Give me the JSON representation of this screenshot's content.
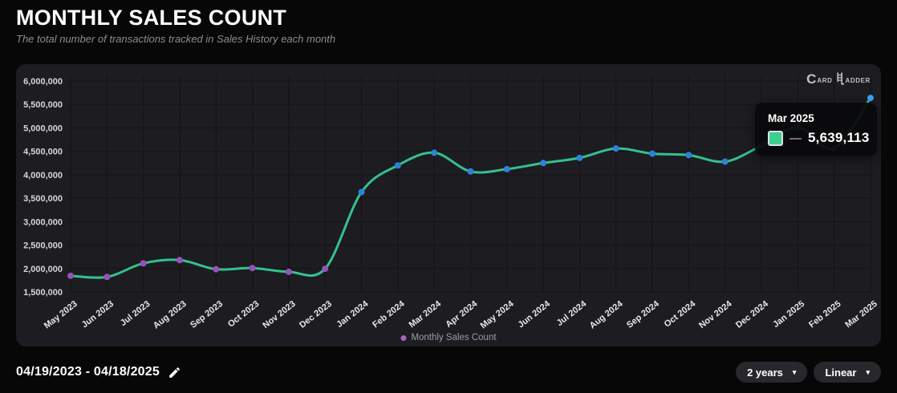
{
  "header": {
    "title": "MONTHLY SALES COUNT",
    "subtitle": "The total number of transactions tracked in Sales History each month"
  },
  "chart_data": {
    "type": "line",
    "title": "Monthly Sales Count",
    "categories": [
      "May 2023",
      "Jun 2023",
      "Jul 2023",
      "Aug 2023",
      "Sep 2023",
      "Oct 2023",
      "Nov 2023",
      "Dec 2023",
      "Jan 2024",
      "Feb 2024",
      "Mar 2024",
      "Apr 2024",
      "May 2024",
      "Jun 2024",
      "Jul 2024",
      "Aug 2024",
      "Sep 2024",
      "Oct 2024",
      "Nov 2024",
      "Dec 2024",
      "Jan 2025",
      "Feb 2025",
      "Mar 2025"
    ],
    "series": [
      {
        "name": "Monthly Sales Count",
        "values": [
          1845000,
          1820000,
          2110000,
          2180000,
          1985000,
          2010000,
          1930000,
          1995000,
          3630000,
          4200000,
          4470000,
          4070000,
          4120000,
          4250000,
          4360000,
          4560000,
          4450000,
          4420000,
          4280000,
          4620000,
          5010000,
          4560000,
          5639113
        ]
      }
    ],
    "ylim": [
      1500000,
      6000000
    ],
    "yticks": [
      1500000,
      2000000,
      2500000,
      3000000,
      3500000,
      4000000,
      4500000,
      5000000,
      5500000,
      6000000
    ],
    "grid": true,
    "xlabel": "",
    "ylabel": "",
    "legend": {
      "label": "Monthly Sales Count",
      "position": "bottom",
      "dot_color": "#a763c9"
    },
    "colors": {
      "line": "#35c08e",
      "dot_purple": "#9552ba",
      "dot_blue": "#2d82d8",
      "dot_last": "#3da0f5",
      "grid": "#141417",
      "y_label": "#d6d6da",
      "x_label": "#e8e8ea"
    },
    "purple_dot_count": 8
  },
  "tooltip": {
    "date": "Mar 2025",
    "dash": "—",
    "value": "5,639,113",
    "swatch_color": "#3dcf8e"
  },
  "logo": {
    "c": "C",
    "ard": "ARD",
    "adder": "ADDER"
  },
  "footer": {
    "date_range": "04/19/2023 - 04/18/2025",
    "range_button": "2 years",
    "scale_button": "Linear",
    "caret": "▾"
  }
}
